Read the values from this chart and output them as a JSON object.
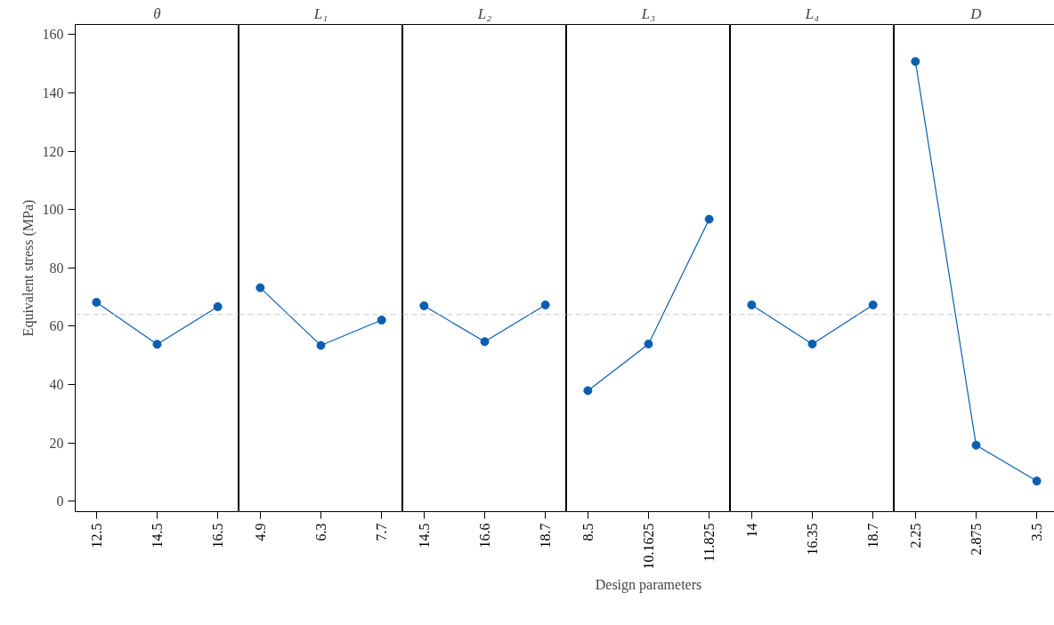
{
  "chart_data": [
    {
      "type": "line",
      "title": "θ",
      "ylabel": "Equivalent stress (MPa)",
      "categories": [
        "12.5",
        "14.5",
        "16.5"
      ],
      "values": [
        68.2,
        53.8,
        66.7
      ],
      "color": "#0a5eb0",
      "marker": "circle",
      "ylim": [
        -3.6,
        163.5
      ],
      "yticks": [
        0,
        20,
        40,
        60,
        80,
        100,
        120,
        140,
        160
      ],
      "ref_lines": [
        {
          "axis": "y",
          "value": 64,
          "color": "#c8c8c8",
          "line_style": "dashed"
        }
      ]
    },
    {
      "type": "line",
      "title": "L₁",
      "categories": [
        "4.9",
        "6.3",
        "7.7"
      ],
      "values": [
        73.2,
        53.4,
        62.1
      ],
      "color": "#0a5eb0",
      "marker": "circle",
      "ylim": [
        -3.6,
        163.5
      ],
      "tick_labels": "x",
      "ref_lines": [
        {
          "axis": "y",
          "value": 64,
          "color": "#c8c8c8",
          "line_style": "dashed"
        }
      ]
    },
    {
      "type": "line",
      "title": "L₂",
      "categories": [
        "14.5",
        "16.6",
        "18.7"
      ],
      "values": [
        67.0,
        54.7,
        67.3
      ],
      "color": "#0a5eb0",
      "marker": "circle",
      "ylim": [
        -3.6,
        163.5
      ],
      "tick_labels": "x",
      "ref_lines": [
        {
          "axis": "y",
          "value": 64,
          "color": "#c8c8c8",
          "line_style": "dashed"
        }
      ]
    },
    {
      "type": "line",
      "title": "L₃",
      "xlabel": "Design parameters",
      "categories": [
        "8.5",
        "10.1625",
        "11.825"
      ],
      "values": [
        37.9,
        53.9,
        96.7
      ],
      "color": "#0a5eb0",
      "marker": "circle",
      "ylim": [
        -3.6,
        163.5
      ],
      "tick_labels": "x",
      "ref_lines": [
        {
          "axis": "y",
          "value": 64,
          "color": "#c8c8c8",
          "line_style": "dashed"
        }
      ]
    },
    {
      "type": "line",
      "title": "L₄",
      "categories": [
        "14",
        "16.35",
        "18.7"
      ],
      "values": [
        67.3,
        53.9,
        67.3
      ],
      "color": "#0a5eb0",
      "marker": "circle",
      "ylim": [
        -3.6,
        163.5
      ],
      "tick_labels": "x",
      "ref_lines": [
        {
          "axis": "y",
          "value": 64,
          "color": "#c8c8c8",
          "line_style": "dashed"
        }
      ]
    },
    {
      "type": "line",
      "title": "D",
      "categories": [
        "2.25",
        "2.875",
        "3.5"
      ],
      "values": [
        150.8,
        19.2,
        6.9
      ],
      "color": "#0a5eb0",
      "marker": "circle",
      "ylim": [
        -3.6,
        163.5
      ],
      "tick_labels": "x",
      "ref_lines": [
        {
          "axis": "y",
          "value": 64,
          "color": "#c8c8c8",
          "line_style": "dashed"
        }
      ]
    }
  ]
}
